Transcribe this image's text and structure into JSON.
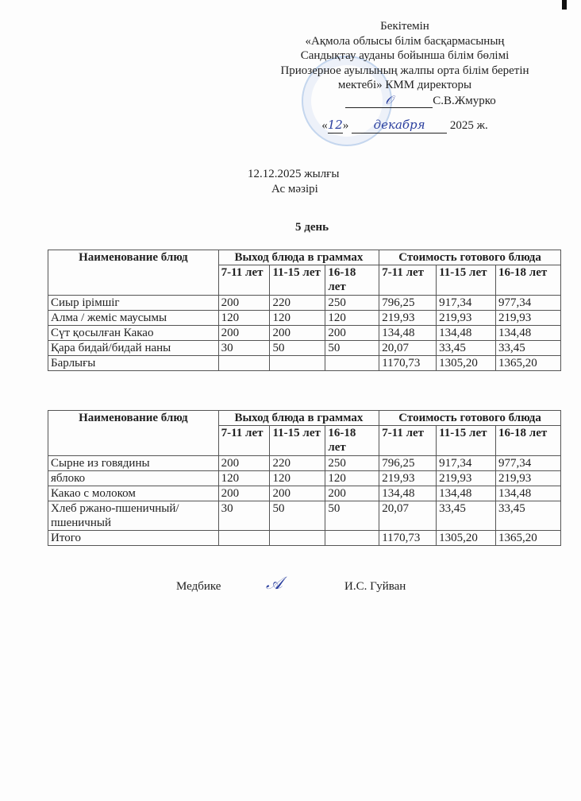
{
  "approval": {
    "title": "Бекітемін",
    "lines": [
      "«Ақмола облысы білім басқармасының",
      "Сандықтау ауданы бойынша білім бөлімі",
      "Приозерное ауылының жалпы орта білім беретін",
      "мектебі» КММ директоры"
    ],
    "director": "С.В.Жмурко",
    "day": "12",
    "month": "декабря",
    "year": "2025 ж."
  },
  "date_line": "12.12.2025 жылғы",
  "menu_title": "Ас мәзірі",
  "day_label": "5 день",
  "headers": {
    "name": "Наименование блюд",
    "yield": "Выход блюда в граммах",
    "cost": "Стоимость готового блюда",
    "ages": [
      "7-11 лет",
      "11-15 лет",
      "16-18 лет"
    ]
  },
  "table_kz": {
    "rows": [
      [
        "Сиыр ірімшіг",
        "200",
        "220",
        "250",
        "796,25",
        "917,34",
        "977,34"
      ],
      [
        "Алма / жеміс маусымы",
        "120",
        "120",
        "120",
        "219,93",
        "219,93",
        "219,93"
      ],
      [
        "Сүт қосылған Какао",
        "200",
        "200",
        "200",
        "134,48",
        "134,48",
        "134,48"
      ],
      [
        "Қара бидай/бидай наны",
        "30",
        "50",
        "50",
        "20,07",
        "33,45",
        "33,45"
      ],
      [
        "Барлығы",
        "",
        "",
        "",
        "1170,73",
        "1305,20",
        "1365,20"
      ]
    ]
  },
  "table_ru": {
    "rows": [
      [
        "Сырне из говядины",
        "200",
        "220",
        "250",
        "796,25",
        "917,34",
        "977,34"
      ],
      [
        "яблоко",
        "120",
        "120",
        "120",
        "219,93",
        "219,93",
        "219,93"
      ],
      [
        "Какао с молоком",
        "200",
        "200",
        "200",
        "134,48",
        "134,48",
        "134,48"
      ],
      [
        "Хлеб ржано-пшеничный/пшеничный",
        "30",
        "50",
        "50",
        "20,07",
        "33,45",
        "33,45"
      ],
      [
        "Итого",
        "",
        "",
        "",
        "1170,73",
        "1305,20",
        "1365,20"
      ]
    ]
  },
  "footer": {
    "role": "Медбике",
    "name": "И.С. Гуйван"
  }
}
